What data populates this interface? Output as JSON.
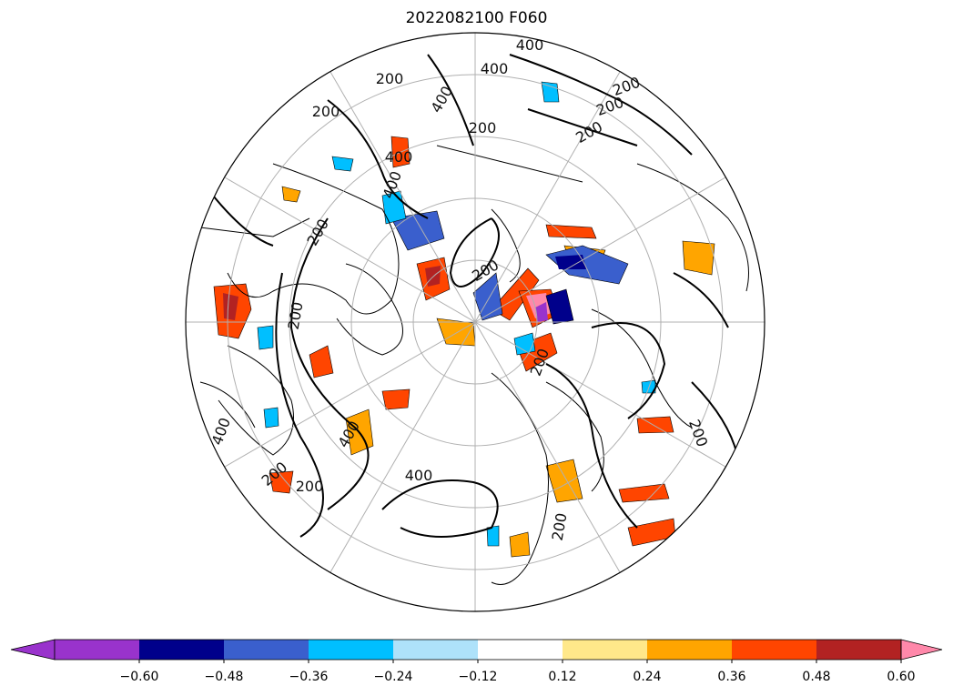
{
  "title": "2022082100 F060",
  "map": {
    "projection": "north-polar-stereographic",
    "contour_labels": [
      "400",
      "400",
      "200",
      "400",
      "200",
      "200",
      "400",
      "200",
      "200",
      "400",
      "200",
      "200",
      "200",
      "400",
      "200",
      "400",
      "200",
      "200",
      "200",
      "200",
      "400",
      "200"
    ]
  },
  "colorbar": {
    "tick_labels": [
      "−0.60",
      "−0.48",
      "−0.36",
      "−0.24",
      "−0.12",
      "0.12",
      "0.24",
      "0.36",
      "0.48",
      "0.60"
    ],
    "colors": [
      "#9933cc",
      "#00008b",
      "#3a5fcd",
      "#00bfff",
      "#aee2fa",
      "#ffffff",
      "#ffe88a",
      "#ffa500",
      "#ff4500",
      "#b22222",
      "#ff88aa"
    ]
  }
}
